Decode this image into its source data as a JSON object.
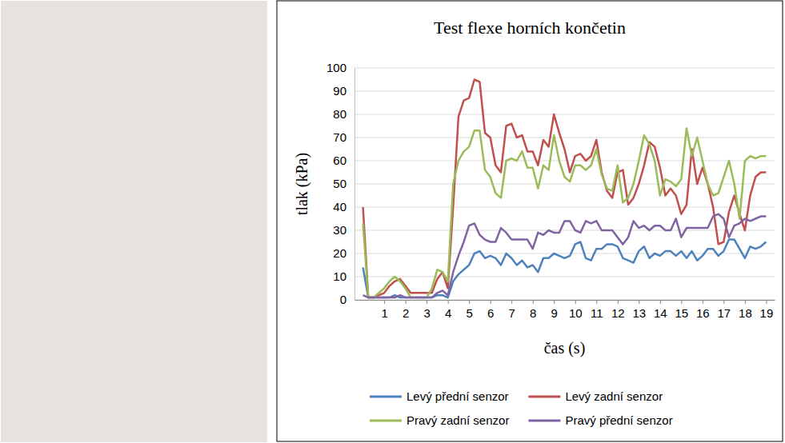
{
  "chart_data": {
    "type": "line",
    "title": "Test flexe horních končetin",
    "x_label": "čas (s)",
    "y_label": "tlak (kPa)",
    "x": [
      0,
      0.25,
      0.5,
      0.75,
      1,
      1.25,
      1.5,
      1.75,
      2,
      2.25,
      2.5,
      2.75,
      3,
      3.25,
      3.5,
      3.75,
      4,
      4.25,
      4.5,
      4.75,
      5,
      5.25,
      5.5,
      5.75,
      6,
      6.25,
      6.5,
      6.75,
      7,
      7.25,
      7.5,
      7.75,
      8,
      8.25,
      8.5,
      8.75,
      9,
      9.25,
      9.5,
      9.75,
      10,
      10.25,
      10.5,
      10.75,
      11,
      11.25,
      11.5,
      11.75,
      12,
      12.25,
      12.5,
      12.75,
      13,
      13.25,
      13.5,
      13.75,
      14,
      14.25,
      14.5,
      14.75,
      15,
      15.25,
      15.5,
      15.75,
      16,
      16.25,
      16.5,
      16.75,
      17,
      17.25,
      17.5,
      17.75,
      18,
      18.25,
      18.5,
      18.75,
      19
    ],
    "series": [
      {
        "name": "Levý přední senzor",
        "color": "#4f81bd",
        "values": [
          14,
          1,
          1,
          1,
          1,
          1,
          2,
          1,
          1,
          1,
          1,
          1,
          1,
          1,
          2,
          2,
          1,
          8,
          11,
          13,
          15,
          20,
          21,
          18,
          19,
          18,
          15,
          20,
          18,
          15,
          17,
          14,
          15,
          12,
          18,
          18,
          20,
          19,
          18,
          19,
          24,
          25,
          18,
          17,
          22,
          22,
          24,
          24,
          23,
          18,
          17,
          16,
          21,
          23,
          18,
          20,
          19,
          21,
          21,
          19,
          21,
          18,
          21,
          17,
          19,
          22,
          22,
          19,
          21,
          26,
          26,
          22,
          18,
          23,
          22,
          23,
          25
        ]
      },
      {
        "name": "Levý zadní senzor",
        "color": "#c0504d",
        "values": [
          40,
          1,
          1,
          2,
          3,
          6,
          8,
          9,
          6,
          3,
          3,
          3,
          3,
          3,
          9,
          12,
          5,
          40,
          79,
          86,
          87,
          95,
          94,
          72,
          70,
          58,
          55,
          75,
          76,
          70,
          71,
          64,
          64,
          58,
          69,
          66,
          80,
          72,
          65,
          55,
          62,
          63,
          60,
          62,
          69,
          55,
          47,
          44,
          55,
          56,
          41,
          44,
          50,
          58,
          68,
          66,
          57,
          45,
          48,
          45,
          37,
          41,
          65,
          50,
          57,
          50,
          40,
          24,
          25,
          38,
          45,
          37,
          30,
          45,
          53,
          55,
          55
        ]
      },
      {
        "name": "Pravý zadní senzor",
        "color": "#9bbb59",
        "values": [
          33,
          1,
          1,
          3,
          5,
          8,
          10,
          8,
          5,
          1,
          1,
          1,
          1,
          5,
          13,
          12,
          8,
          50,
          60,
          64,
          66,
          73,
          73,
          56,
          53,
          46,
          44,
          60,
          61,
          60,
          64,
          57,
          57,
          48,
          58,
          56,
          71,
          60,
          53,
          51,
          58,
          58,
          56,
          58,
          65,
          54,
          48,
          47,
          58,
          42,
          44,
          50,
          60,
          71,
          67,
          60,
          45,
          52,
          51,
          49,
          52,
          74,
          62,
          70,
          60,
          50,
          45,
          46,
          53,
          60,
          50,
          35,
          60,
          62,
          61,
          62,
          62
        ]
      },
      {
        "name": "Pravý přední senzor",
        "color": "#8064a2",
        "values": [
          2,
          1,
          1,
          1,
          1,
          1,
          1,
          2,
          1,
          1,
          1,
          1,
          1,
          1,
          3,
          4,
          2,
          12,
          19,
          25,
          32,
          33,
          28,
          26,
          25,
          25,
          31,
          29,
          26,
          26,
          26,
          26,
          22,
          29,
          28,
          30,
          29,
          29,
          34,
          34,
          30,
          29,
          34,
          33,
          34,
          30,
          30,
          30,
          27,
          24,
          27,
          34,
          31,
          32,
          30,
          32,
          32,
          30,
          30,
          35,
          27,
          31,
          31,
          31,
          31,
          31,
          36,
          37,
          35,
          27,
          32,
          33,
          35,
          34,
          35,
          36,
          36
        ]
      }
    ],
    "xlim": [
      -0.4,
      19.4
    ],
    "xticks": [
      1,
      2,
      3,
      4,
      5,
      6,
      7,
      8,
      9,
      10,
      11,
      12,
      13,
      14,
      15,
      16,
      17,
      18,
      19
    ],
    "ylim": [
      0,
      100
    ],
    "yticks": [
      0,
      10,
      20,
      30,
      40,
      50,
      60,
      70,
      80,
      90,
      100
    ],
    "grid": true,
    "legend": "bottom"
  }
}
